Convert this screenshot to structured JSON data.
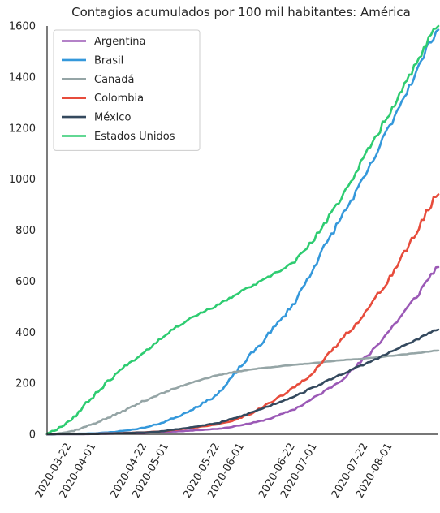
{
  "chart_data": {
    "type": "line",
    "title": "Contagios acumulados por 100 mil habitantes: América",
    "xlabel": "",
    "ylabel": "",
    "x_start": "2020-03-12",
    "x_end": "2020-08-20",
    "ylim": [
      0,
      1600
    ],
    "grid": false,
    "legend_position": "top-left",
    "x_ticks": [
      "2020-03-22",
      "2020-04-01",
      "2020-04-22",
      "2020-05-01",
      "2020-05-22",
      "2020-06-01",
      "2020-06-22",
      "2020-07-01",
      "2020-07-22",
      "2020-08-01"
    ],
    "y_ticks": [
      0,
      200,
      400,
      600,
      800,
      1000,
      1200,
      1400,
      1600
    ],
    "series": [
      {
        "name": "Argentina",
        "color": "#9b59b6",
        "points": [
          [
            "2020-03-12",
            0
          ],
          [
            "2020-04-01",
            1
          ],
          [
            "2020-04-22",
            6
          ],
          [
            "2020-05-01",
            10
          ],
          [
            "2020-05-22",
            22
          ],
          [
            "2020-06-01",
            38
          ],
          [
            "2020-06-11",
            60
          ],
          [
            "2020-06-22",
            100
          ],
          [
            "2020-07-01",
            150
          ],
          [
            "2020-07-11",
            215
          ],
          [
            "2020-07-22",
            310
          ],
          [
            "2020-08-01",
            420
          ],
          [
            "2020-08-11",
            540
          ],
          [
            "2020-08-20",
            655
          ]
        ]
      },
      {
        "name": "Brasil",
        "color": "#3498db",
        "points": [
          [
            "2020-03-12",
            0
          ],
          [
            "2020-04-01",
            4
          ],
          [
            "2020-04-11",
            12
          ],
          [
            "2020-04-22",
            28
          ],
          [
            "2020-05-01",
            55
          ],
          [
            "2020-05-11",
            100
          ],
          [
            "2020-05-22",
            165
          ],
          [
            "2020-06-01",
            280
          ],
          [
            "2020-06-11",
            390
          ],
          [
            "2020-06-22",
            520
          ],
          [
            "2020-07-01",
            680
          ],
          [
            "2020-07-11",
            850
          ],
          [
            "2020-07-22",
            1030
          ],
          [
            "2020-08-01",
            1230
          ],
          [
            "2020-08-11",
            1420
          ],
          [
            "2020-08-20",
            1585
          ]
        ]
      },
      {
        "name": "Canadá",
        "color": "#95a5a6",
        "points": [
          [
            "2020-03-12",
            1
          ],
          [
            "2020-03-22",
            12
          ],
          [
            "2020-04-01",
            45
          ],
          [
            "2020-04-11",
            85
          ],
          [
            "2020-04-22",
            135
          ],
          [
            "2020-05-01",
            170
          ],
          [
            "2020-05-11",
            205
          ],
          [
            "2020-05-22",
            232
          ],
          [
            "2020-06-01",
            250
          ],
          [
            "2020-06-11",
            262
          ],
          [
            "2020-06-22",
            272
          ],
          [
            "2020-07-01",
            280
          ],
          [
            "2020-07-11",
            290
          ],
          [
            "2020-07-22",
            298
          ],
          [
            "2020-08-01",
            308
          ],
          [
            "2020-08-11",
            318
          ],
          [
            "2020-08-20",
            328
          ]
        ]
      },
      {
        "name": "Colombia",
        "color": "#e74c3c",
        "points": [
          [
            "2020-03-12",
            0
          ],
          [
            "2020-04-01",
            2
          ],
          [
            "2020-04-22",
            8
          ],
          [
            "2020-05-01",
            15
          ],
          [
            "2020-05-22",
            40
          ],
          [
            "2020-06-01",
            70
          ],
          [
            "2020-06-11",
            120
          ],
          [
            "2020-06-22",
            185
          ],
          [
            "2020-07-01",
            260
          ],
          [
            "2020-07-11",
            370
          ],
          [
            "2020-07-22",
            490
          ],
          [
            "2020-08-01",
            630
          ],
          [
            "2020-08-11",
            790
          ],
          [
            "2020-08-20",
            940
          ]
        ]
      },
      {
        "name": "México",
        "color": "#34495e",
        "points": [
          [
            "2020-03-12",
            0
          ],
          [
            "2020-04-01",
            1
          ],
          [
            "2020-04-22",
            8
          ],
          [
            "2020-05-01",
            16
          ],
          [
            "2020-05-22",
            45
          ],
          [
            "2020-06-01",
            75
          ],
          [
            "2020-06-11",
            110
          ],
          [
            "2020-06-22",
            150
          ],
          [
            "2020-07-01",
            190
          ],
          [
            "2020-07-11",
            235
          ],
          [
            "2020-07-22",
            280
          ],
          [
            "2020-08-01",
            325
          ],
          [
            "2020-08-11",
            370
          ],
          [
            "2020-08-20",
            410
          ]
        ]
      },
      {
        "name": "Estados Unidos",
        "color": "#2ecc71",
        "points": [
          [
            "2020-03-12",
            5
          ],
          [
            "2020-03-22",
            60
          ],
          [
            "2020-04-01",
            160
          ],
          [
            "2020-04-11",
            250
          ],
          [
            "2020-04-22",
            330
          ],
          [
            "2020-05-01",
            400
          ],
          [
            "2020-05-11",
            460
          ],
          [
            "2020-05-22",
            510
          ],
          [
            "2020-06-01",
            565
          ],
          [
            "2020-06-11",
            615
          ],
          [
            "2020-06-22",
            680
          ],
          [
            "2020-07-01",
            780
          ],
          [
            "2020-07-11",
            930
          ],
          [
            "2020-07-22",
            1110
          ],
          [
            "2020-08-01",
            1280
          ],
          [
            "2020-08-11",
            1450
          ],
          [
            "2020-08-20",
            1600
          ]
        ]
      }
    ]
  }
}
